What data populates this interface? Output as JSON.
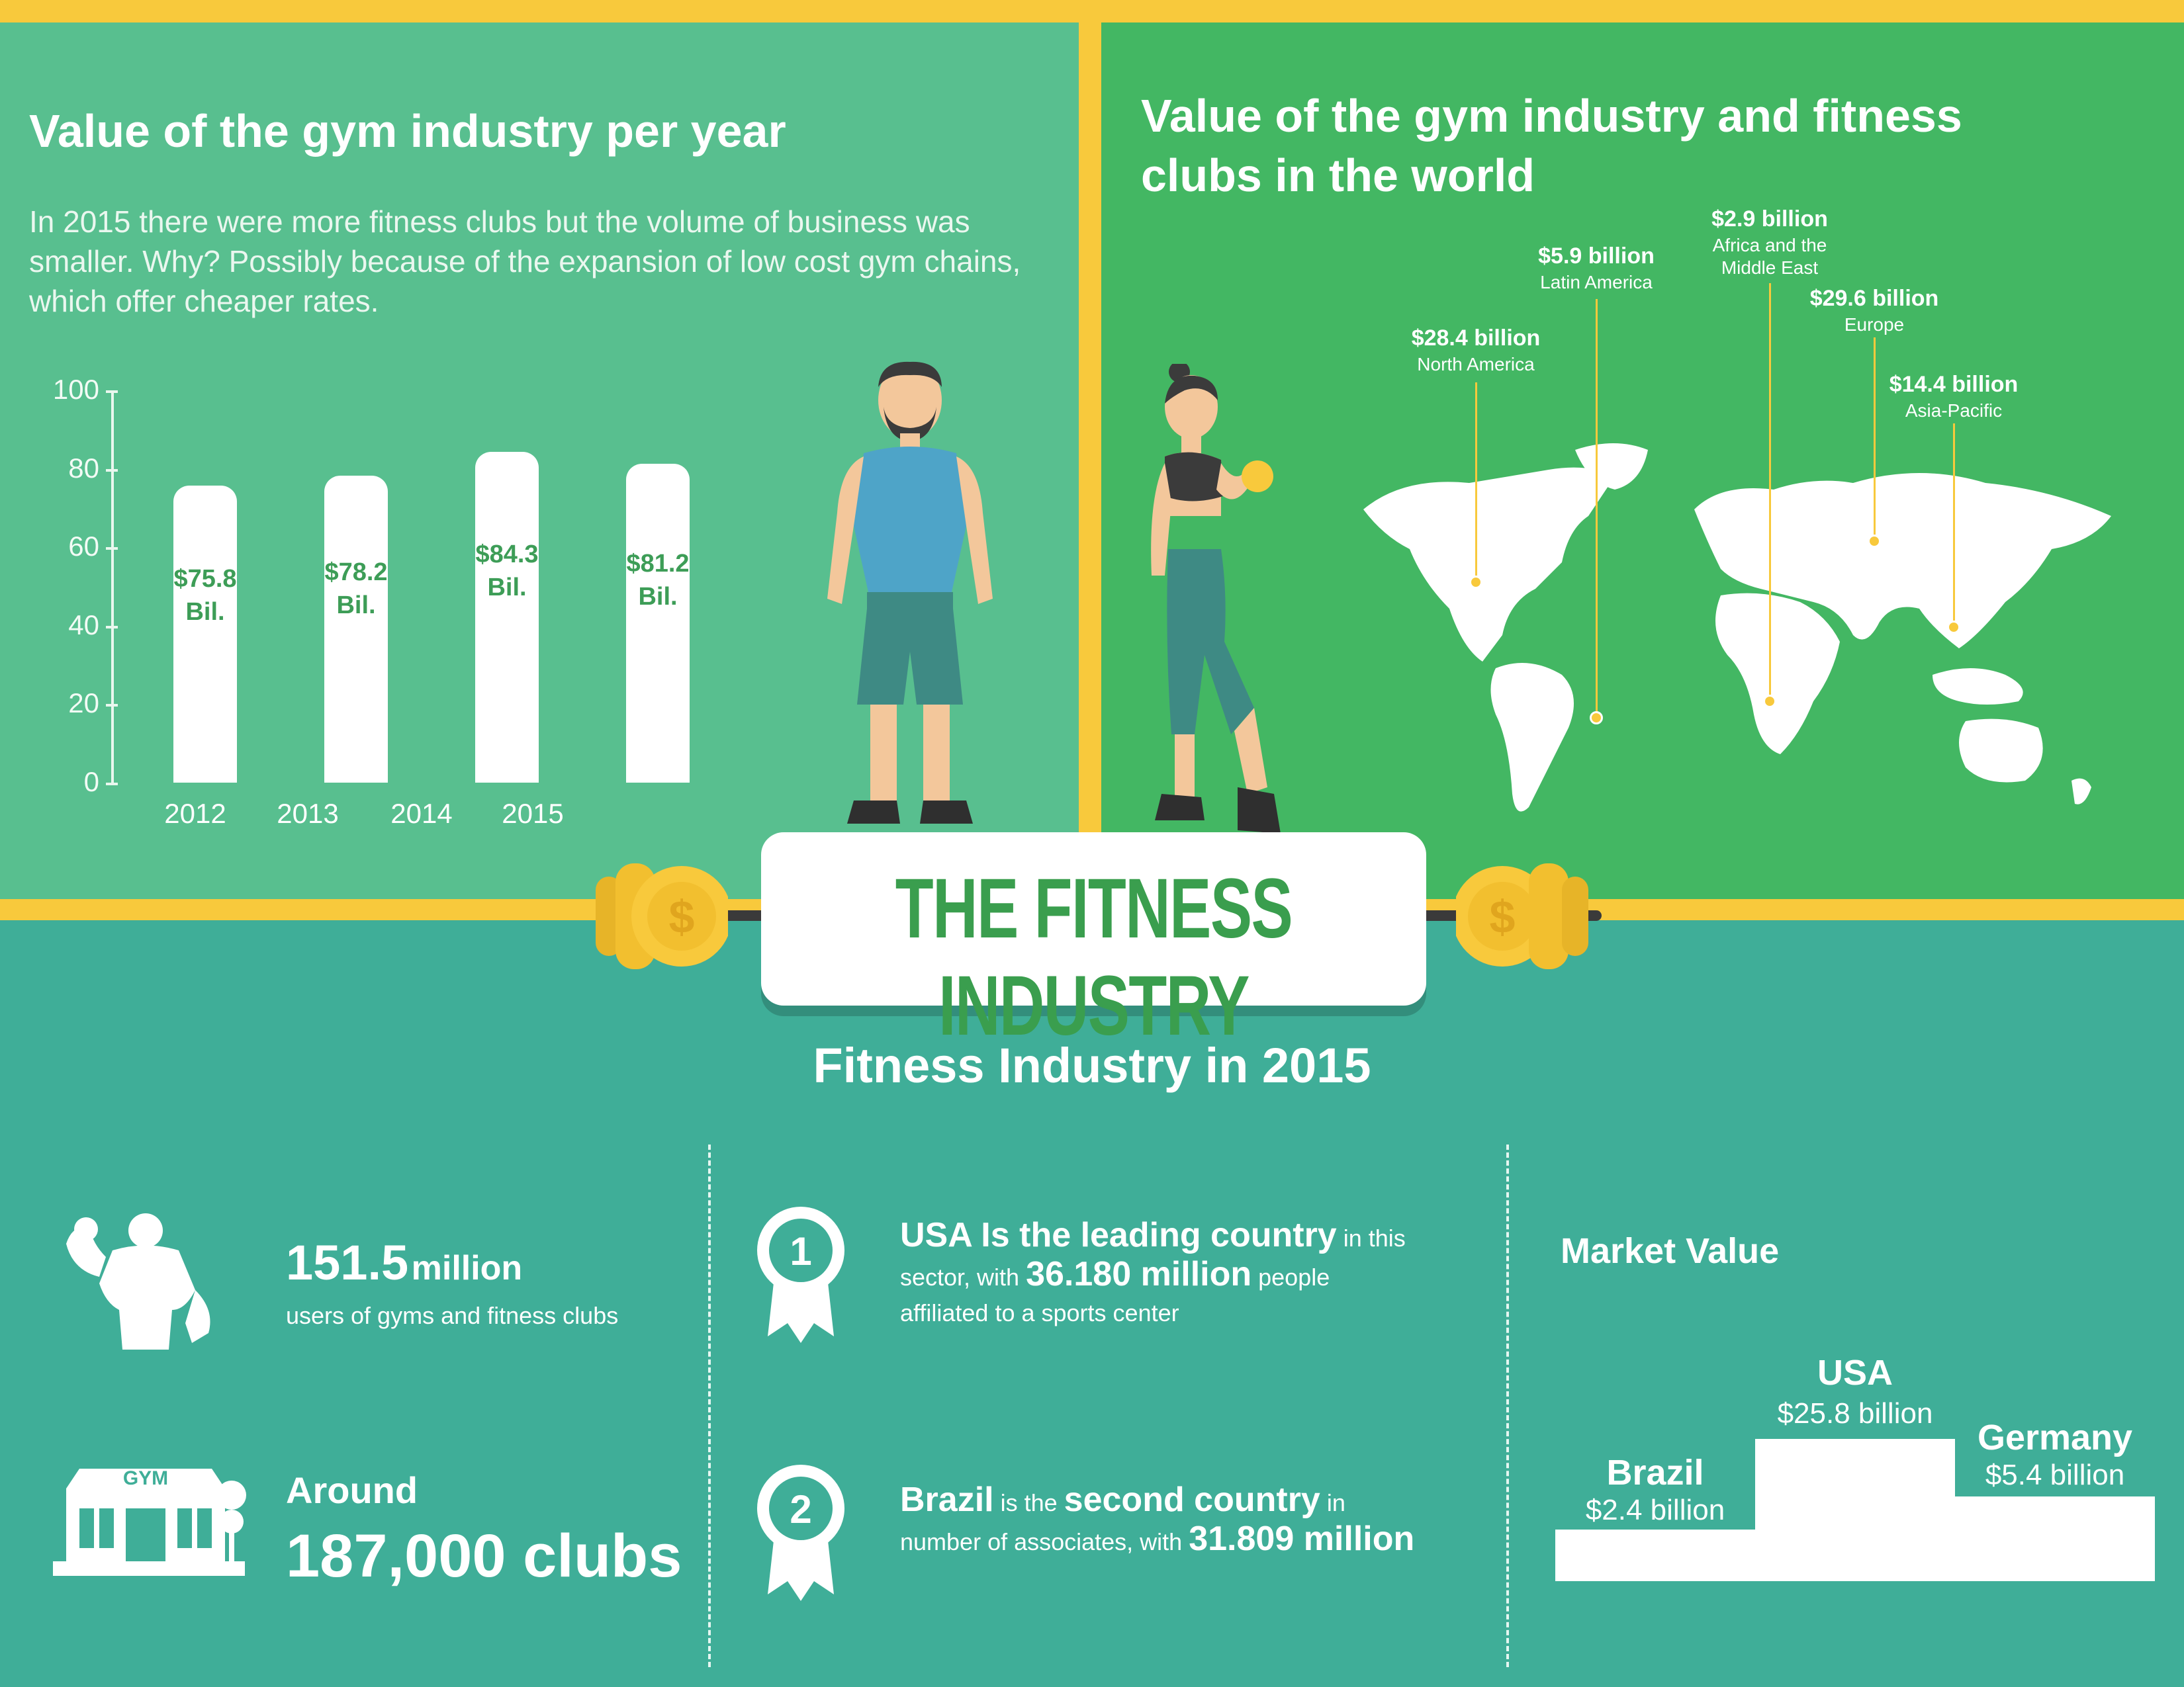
{
  "left_panel": {
    "title": "Value of the gym industry per year",
    "description": "In 2015 there were more fitness clubs but the volume of business was smaller. Why? Possibly because of the expansion of low cost gym chains, which offer cheaper rates."
  },
  "chart_data": {
    "type": "bar",
    "title": "Value of the gym industry per year",
    "categories": [
      "2012",
      "2013",
      "2014",
      "2015"
    ],
    "values": [
      75.8,
      78.2,
      84.3,
      81.2
    ],
    "bar_labels": [
      [
        "$75.8",
        "Bil."
      ],
      [
        "$78.2",
        "Bil."
      ],
      [
        "$84.3",
        "Bil."
      ],
      [
        "$81.2",
        "Bil."
      ]
    ],
    "y_ticks": [
      "100",
      "80",
      "60",
      "40",
      "20",
      "0"
    ],
    "ylim": [
      0,
      100
    ],
    "grid": false,
    "colors": {
      "bar": "#ffffff",
      "label": "#3d9d57"
    }
  },
  "right_panel": {
    "title": "Value of the gym industry and fitness clubs in the world",
    "regions": [
      {
        "value": "$28.4 billion",
        "name": "North America"
      },
      {
        "value": "$5.9 billion",
        "name": "Latin America"
      },
      {
        "value": "$2.9 billion",
        "name": "Africa and the Middle East"
      },
      {
        "value": "$29.6 billion",
        "name": "Europe"
      },
      {
        "value": "$14.4 billion",
        "name": "Asia-Pacific"
      }
    ]
  },
  "banner": {
    "title": "THE FITNESS INDUSTRY"
  },
  "bottom": {
    "title": "Fitness Industry in 2015",
    "users": {
      "number": "151.5",
      "unit": "million",
      "label": "users of gyms and fitness clubs"
    },
    "clubs": {
      "prefix": "Around",
      "number": "187,000 clubs",
      "gym_sign": "GYM"
    },
    "rank1": {
      "badge": "1",
      "lead": "USA Is the leading country",
      "tail": " in this",
      "line2_pre": "sector, with ",
      "line2_bold": "36.180 million",
      "line2_post": " people",
      "line3": "affiliated to a sports center"
    },
    "rank2": {
      "badge": "2",
      "lead": "Brazil",
      "mid": " is the ",
      "bold2": "second country",
      "tail": " in",
      "line2_pre": "number of associates, with ",
      "line2_bold": "31.809 million"
    },
    "market": {
      "title": "Market Value",
      "brazil": {
        "name": "Brazil",
        "value": "$2.4 billion"
      },
      "usa": {
        "name": "USA",
        "value": "$25.8 billion"
      },
      "germany": {
        "name": "Germany",
        "value": "$5.4 billion"
      }
    }
  },
  "colors": {
    "yellow": "#f8c93c",
    "left_green": "#58bf8f",
    "right_green": "#43b763",
    "teal": "#3fae98",
    "title_green": "#3a9e4e"
  }
}
